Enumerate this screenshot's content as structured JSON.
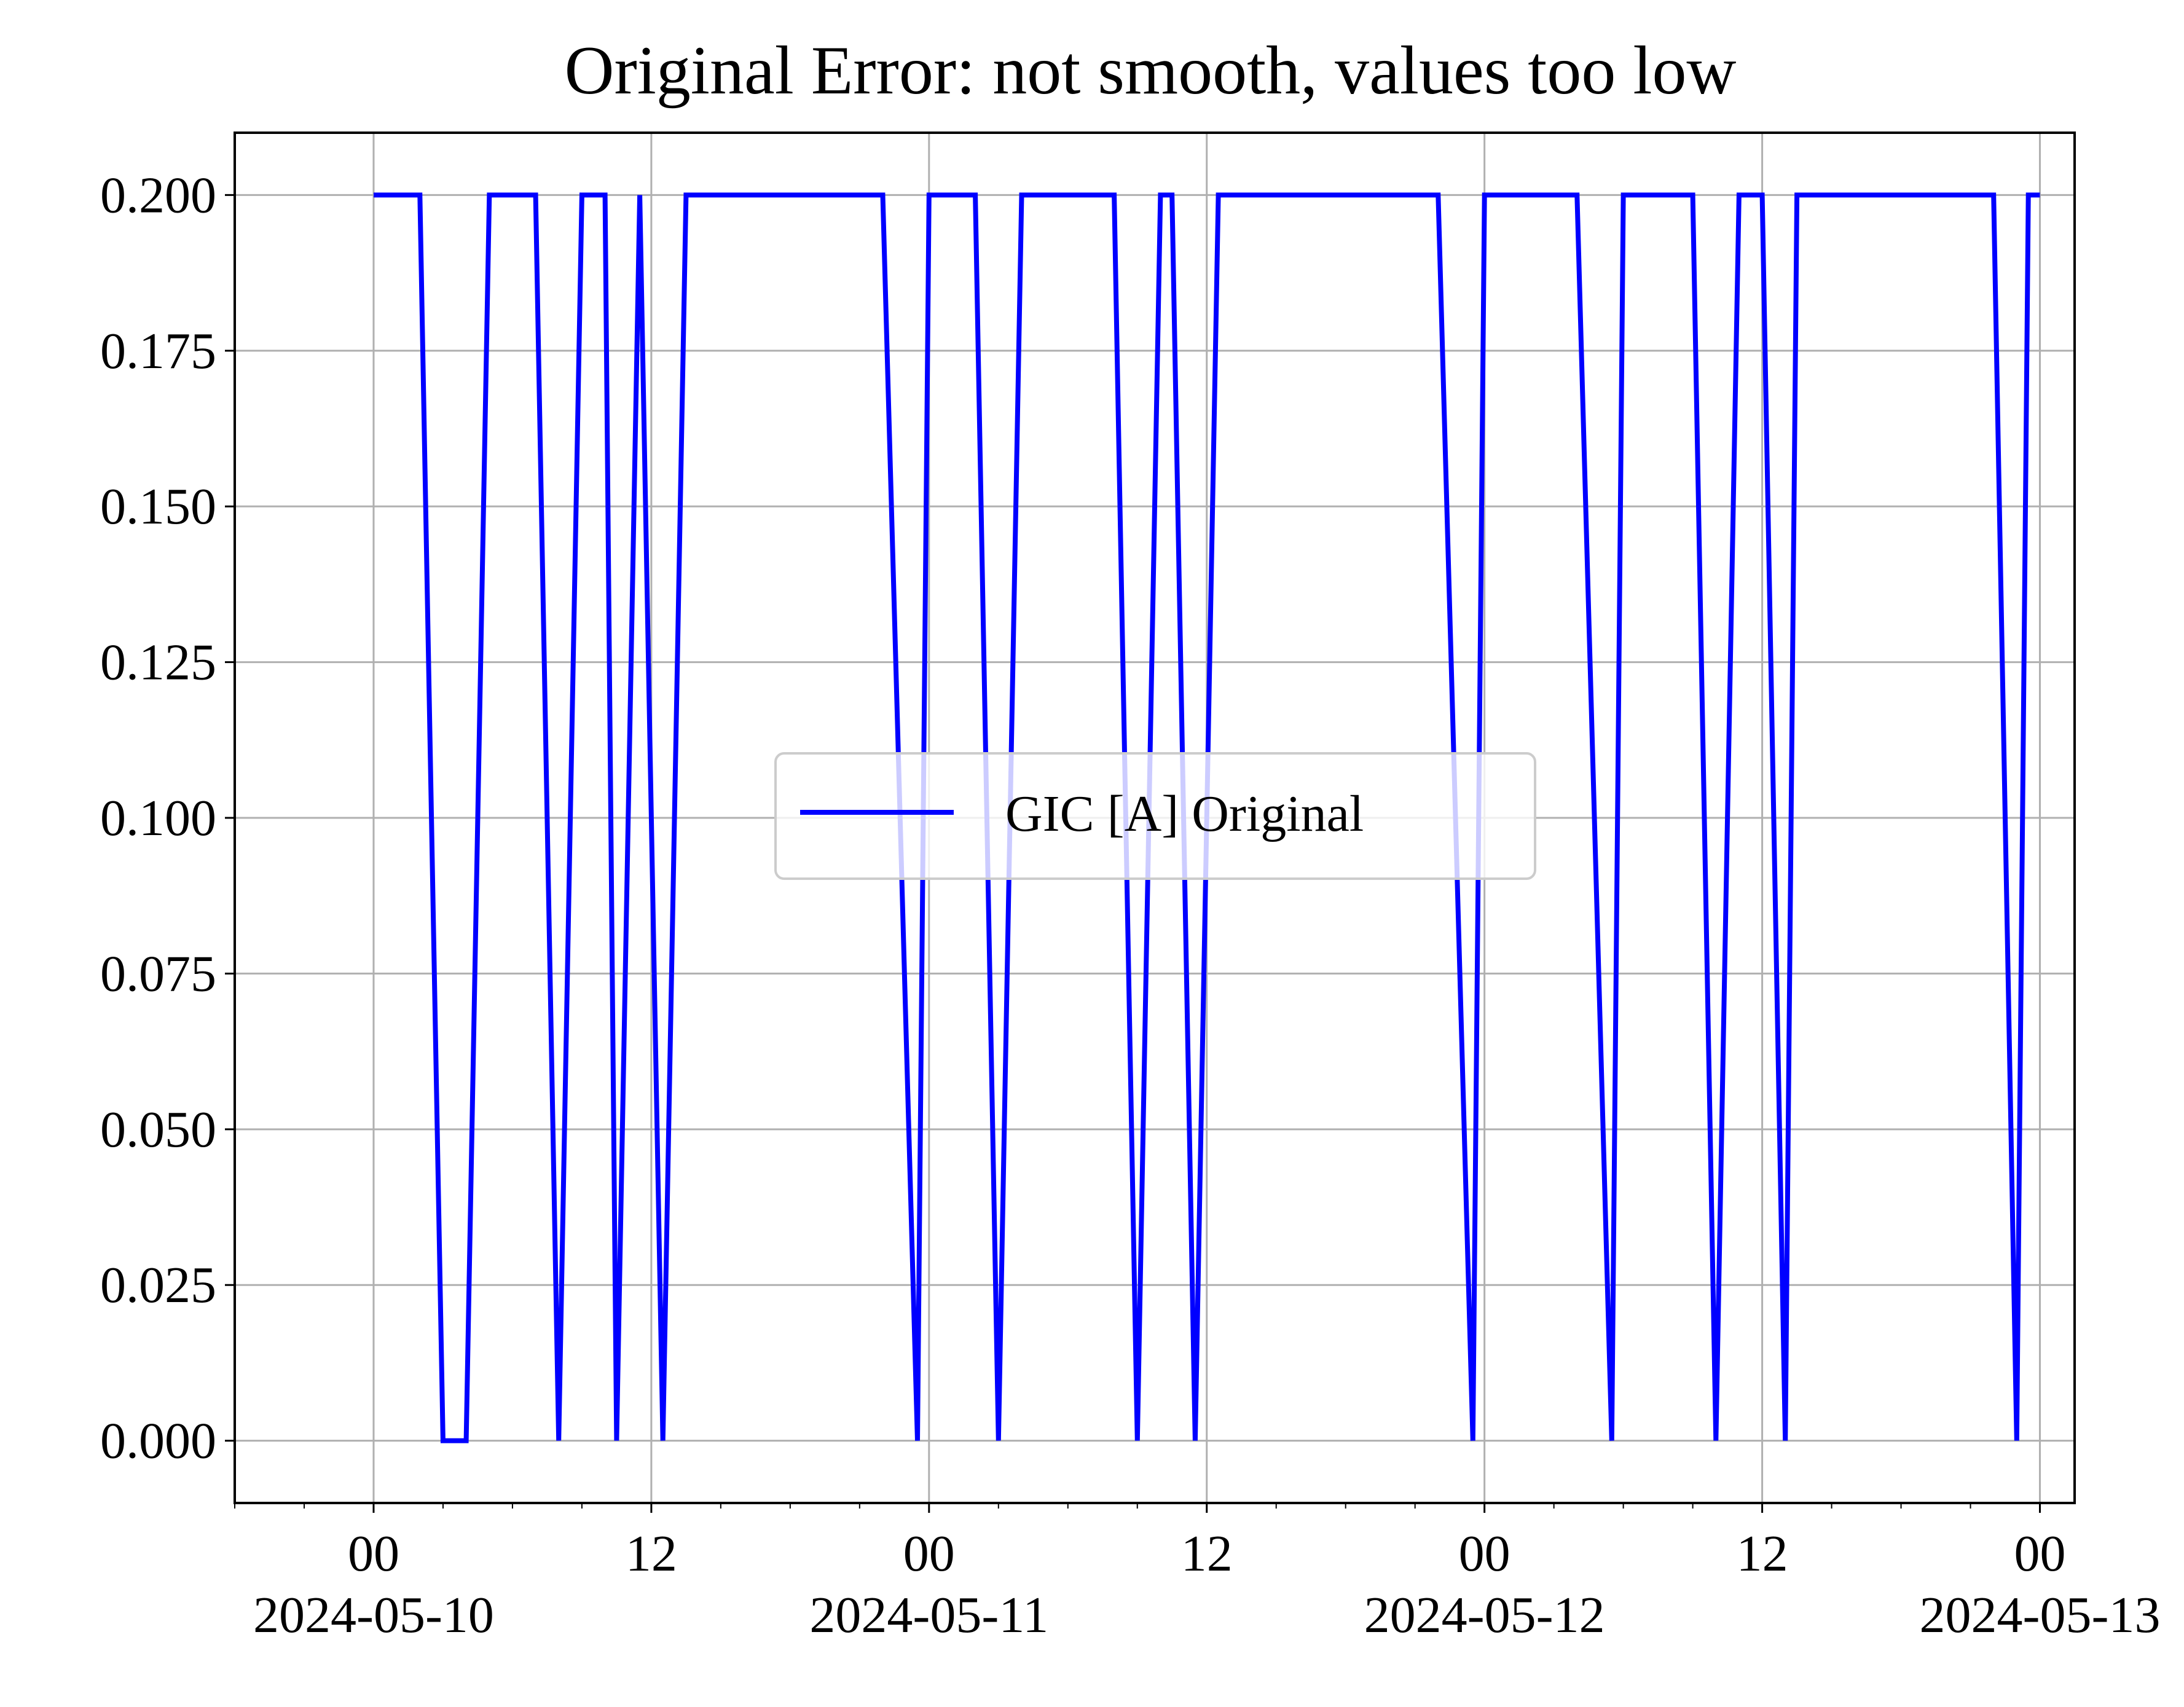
{
  "chart_data": {
    "type": "line",
    "title": "Original Error: not smooth, values too low",
    "xlabel": "",
    "ylabel": "",
    "x_axis": {
      "kind": "datetime",
      "range": [
        "2024-05-09T00:00",
        "2024-05-13T12:00"
      ],
      "visible_range": [
        "2024-05-09T18:00",
        "2024-05-13T01:30"
      ],
      "major_ticks": [
        {
          "t": "2024-05-10T00:00",
          "label": "00",
          "date_label": "2024-05-10"
        },
        {
          "t": "2024-05-10T12:00",
          "label": "12",
          "date_label": ""
        },
        {
          "t": "2024-05-11T00:00",
          "label": "00",
          "date_label": "2024-05-11"
        },
        {
          "t": "2024-05-11T12:00",
          "label": "12",
          "date_label": ""
        },
        {
          "t": "2024-05-12T00:00",
          "label": "00",
          "date_label": "2024-05-12"
        },
        {
          "t": "2024-05-12T12:00",
          "label": "12",
          "date_label": ""
        },
        {
          "t": "2024-05-13T00:00",
          "label": "00",
          "date_label": "2024-05-13"
        }
      ],
      "minor_tick_hours": 3
    },
    "y_axis": {
      "range": [
        -0.01,
        0.21
      ],
      "ticks": [
        0.0,
        0.025,
        0.05,
        0.075,
        0.1,
        0.125,
        0.15,
        0.175,
        0.2
      ],
      "tick_labels": [
        "0.000",
        "0.025",
        "0.050",
        "0.075",
        "0.100",
        "0.125",
        "0.150",
        "0.175",
        "0.200"
      ]
    },
    "grid": true,
    "legend": {
      "placement": "center",
      "entries": [
        "GIC [A] Original"
      ]
    },
    "series": [
      {
        "name": "GIC [A] Original",
        "color": "#0000ff",
        "points": [
          [
            "2024-05-10T00:00",
            0.2
          ],
          [
            "2024-05-10T01:00",
            0.2
          ],
          [
            "2024-05-10T02:00",
            0.2
          ],
          [
            "2024-05-10T03:00",
            0.0
          ],
          [
            "2024-05-10T04:00",
            0.0
          ],
          [
            "2024-05-10T05:00",
            0.2
          ],
          [
            "2024-05-10T06:00",
            0.2
          ],
          [
            "2024-05-10T07:00",
            0.2
          ],
          [
            "2024-05-10T08:00",
            0.0
          ],
          [
            "2024-05-10T09:00",
            0.2
          ],
          [
            "2024-05-10T10:00",
            0.2
          ],
          [
            "2024-05-10T10:30",
            0.0
          ],
          [
            "2024-05-10T11:30",
            0.2
          ],
          [
            "2024-05-10T12:30",
            0.0
          ],
          [
            "2024-05-10T13:30",
            0.2
          ],
          [
            "2024-05-10T15:00",
            0.2
          ],
          [
            "2024-05-10T18:00",
            0.2
          ],
          [
            "2024-05-10T21:00",
            0.2
          ],
          [
            "2024-05-10T22:00",
            0.2
          ],
          [
            "2024-05-10T23:30",
            0.0
          ],
          [
            "2024-05-11T00:00",
            0.2
          ],
          [
            "2024-05-11T01:00",
            0.2
          ],
          [
            "2024-05-11T02:00",
            0.2
          ],
          [
            "2024-05-11T03:00",
            0.0
          ],
          [
            "2024-05-11T04:00",
            0.2
          ],
          [
            "2024-05-11T06:00",
            0.2
          ],
          [
            "2024-05-11T08:00",
            0.2
          ],
          [
            "2024-05-11T09:00",
            0.0
          ],
          [
            "2024-05-11T10:00",
            0.2
          ],
          [
            "2024-05-11T10:30",
            0.2
          ],
          [
            "2024-05-11T11:30",
            0.0
          ],
          [
            "2024-05-11T12:30",
            0.2
          ],
          [
            "2024-05-11T15:00",
            0.2
          ],
          [
            "2024-05-11T18:00",
            0.2
          ],
          [
            "2024-05-11T21:00",
            0.2
          ],
          [
            "2024-05-11T22:00",
            0.2
          ],
          [
            "2024-05-11T23:30",
            0.0
          ],
          [
            "2024-05-12T00:00",
            0.2
          ],
          [
            "2024-05-12T02:00",
            0.2
          ],
          [
            "2024-05-12T04:00",
            0.2
          ],
          [
            "2024-05-12T05:30",
            0.0
          ],
          [
            "2024-05-12T06:00",
            0.2
          ],
          [
            "2024-05-12T08:00",
            0.2
          ],
          [
            "2024-05-12T09:00",
            0.2
          ],
          [
            "2024-05-12T10:00",
            0.0
          ],
          [
            "2024-05-12T11:00",
            0.2
          ],
          [
            "2024-05-12T12:00",
            0.2
          ],
          [
            "2024-05-12T13:00",
            0.0
          ],
          [
            "2024-05-12T13:30",
            0.2
          ],
          [
            "2024-05-12T16:00",
            0.2
          ],
          [
            "2024-05-12T19:00",
            0.2
          ],
          [
            "2024-05-12T22:00",
            0.2
          ],
          [
            "2024-05-12T23:00",
            0.0
          ],
          [
            "2024-05-12T23:30",
            0.2
          ],
          [
            "2024-05-13T00:00",
            0.2
          ]
        ]
      }
    ]
  }
}
